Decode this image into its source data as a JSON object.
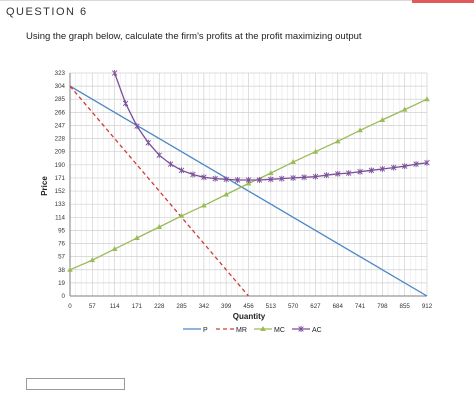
{
  "question": {
    "number_label": "QUESTION 6",
    "prompt": "Using the graph below, calculate the firm's profits at the profit maximizing output"
  },
  "answer": {
    "value": ""
  },
  "colors": {
    "P": "#4a86c6",
    "MR": "#cf3a3a",
    "MC": "#9bbb59",
    "AC": "#7a4f9a",
    "grid": "#d0d0d0"
  },
  "chart_data": {
    "type": "line",
    "xlabel": "Quantity",
    "ylabel": "Price",
    "xlim": [
      0,
      912
    ],
    "ylim": [
      0,
      323
    ],
    "x_ticks": [
      "0",
      "57",
      "114",
      "171",
      "228",
      "285",
      "342",
      "399",
      "456",
      "513",
      "570",
      "627",
      "684",
      "741",
      "798",
      "855",
      "912"
    ],
    "y_ticks": [
      "0",
      "19",
      "38",
      "57",
      "76",
      "95",
      "114",
      "133",
      "152",
      "171",
      "190",
      "209",
      "228",
      "247",
      "266",
      "285",
      "304",
      "323"
    ],
    "grid": true,
    "legend_position": "bottom",
    "series": [
      {
        "name": "P",
        "style": "solid",
        "marker": "none",
        "points": [
          [
            0,
            304
          ],
          [
            912,
            0
          ]
        ]
      },
      {
        "name": "MR",
        "style": "dashed",
        "marker": "none",
        "points": [
          [
            0,
            304
          ],
          [
            456,
            0
          ]
        ]
      },
      {
        "name": "MC",
        "style": "solid",
        "marker": "triangle",
        "points": [
          [
            0,
            38
          ],
          [
            57,
            52
          ],
          [
            114,
            68
          ],
          [
            171,
            84
          ],
          [
            228,
            100
          ],
          [
            285,
            116
          ],
          [
            342,
            131
          ],
          [
            399,
            147
          ],
          [
            456,
            163
          ],
          [
            513,
            178
          ],
          [
            570,
            194
          ],
          [
            627,
            209
          ],
          [
            684,
            224
          ],
          [
            741,
            240
          ],
          [
            798,
            255
          ],
          [
            855,
            270
          ],
          [
            912,
            285
          ]
        ]
      },
      {
        "name": "AC",
        "style": "solid",
        "marker": "star",
        "points": [
          [
            114,
            323
          ],
          [
            142,
            279
          ],
          [
            171,
            246
          ],
          [
            200,
            222
          ],
          [
            228,
            204
          ],
          [
            257,
            191
          ],
          [
            285,
            182
          ],
          [
            314,
            176
          ],
          [
            342,
            172
          ],
          [
            371,
            170
          ],
          [
            399,
            169
          ],
          [
            428,
            168
          ],
          [
            456,
            168
          ],
          [
            484,
            168
          ],
          [
            513,
            169
          ],
          [
            541,
            170
          ],
          [
            570,
            171
          ],
          [
            598,
            172
          ],
          [
            627,
            173
          ],
          [
            655,
            175
          ],
          [
            684,
            177
          ],
          [
            712,
            178
          ],
          [
            741,
            180
          ],
          [
            770,
            182
          ],
          [
            798,
            184
          ],
          [
            827,
            186
          ],
          [
            855,
            188
          ],
          [
            884,
            191
          ],
          [
            912,
            193
          ]
        ]
      }
    ]
  }
}
